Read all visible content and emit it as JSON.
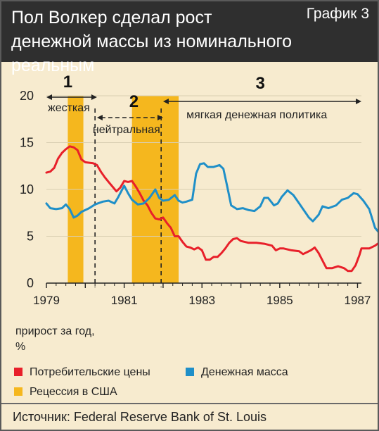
{
  "header": {
    "title": "Пол Волкер сделал рост денежной массы из номинального реальным",
    "chart_label": "График 3"
  },
  "ylabel_lines": [
    "прирост за год,",
    "%"
  ],
  "legend": {
    "items": [
      {
        "label": "Потребительские цены",
        "color": "#e8202a"
      },
      {
        "label": "Денежная масса",
        "color": "#1f8fc8"
      },
      {
        "label": "Рецессия в США",
        "color": "#f5b71e"
      }
    ]
  },
  "source": "Источник: Federal Reserve Bank of St. Louis",
  "phases": [
    {
      "number": "1",
      "label": "жесткая",
      "start": 1979.0,
      "end": 1980.3,
      "style": "solid"
    },
    {
      "number": "2",
      "label": "нейтральная",
      "start": 1980.3,
      "end": 1982.0,
      "style": "dashed"
    },
    {
      "number": "3",
      "label": "мягкая денежная политика",
      "start": 1982.0,
      "end": 1987.1,
      "style": "solid"
    }
  ],
  "chart_data": {
    "type": "line",
    "xlim": [
      1979,
      1987.1
    ],
    "ylim": [
      0,
      20
    ],
    "xticks": [
      1979,
      1981,
      1983,
      1985,
      1987
    ],
    "xtick_labels": [
      "1979",
      "1981",
      "1983",
      "1985",
      "1987"
    ],
    "yticks": [
      0,
      5,
      10,
      15,
      20
    ],
    "ytick_labels": [
      "0",
      "5",
      "10",
      "15",
      "20"
    ],
    "recessions": [
      [
        1979.55,
        1979.95
      ],
      [
        1981.2,
        1982.4
      ]
    ],
    "markers": [
      1980.25,
      1981.95
    ],
    "series": [
      {
        "name": "Потребительские цены",
        "color": "#e8202a",
        "points": [
          [
            1979.0,
            11.8
          ],
          [
            1979.1,
            11.9
          ],
          [
            1979.2,
            12.3
          ],
          [
            1979.3,
            13.3
          ],
          [
            1979.4,
            13.9
          ],
          [
            1979.5,
            14.3
          ],
          [
            1979.6,
            14.6
          ],
          [
            1979.7,
            14.5
          ],
          [
            1979.8,
            14.2
          ],
          [
            1979.9,
            13.2
          ],
          [
            1980.0,
            12.9
          ],
          [
            1980.2,
            12.8
          ],
          [
            1980.3,
            12.6
          ],
          [
            1980.4,
            11.9
          ],
          [
            1980.5,
            11.3
          ],
          [
            1980.6,
            10.8
          ],
          [
            1980.7,
            10.3
          ],
          [
            1980.8,
            9.8
          ],
          [
            1980.9,
            10.2
          ],
          [
            1981.0,
            10.9
          ],
          [
            1981.1,
            10.8
          ],
          [
            1981.2,
            10.9
          ],
          [
            1981.3,
            10.3
          ],
          [
            1981.4,
            9.6
          ],
          [
            1981.5,
            8.8
          ],
          [
            1981.6,
            8.3
          ],
          [
            1981.7,
            7.5
          ],
          [
            1981.8,
            6.9
          ],
          [
            1981.9,
            6.8
          ],
          [
            1982.0,
            7.0
          ],
          [
            1982.1,
            6.4
          ],
          [
            1982.2,
            5.9
          ],
          [
            1982.3,
            5.0
          ],
          [
            1982.4,
            5.0
          ],
          [
            1982.5,
            4.4
          ],
          [
            1982.6,
            3.9
          ],
          [
            1982.7,
            3.8
          ],
          [
            1982.8,
            3.6
          ],
          [
            1982.9,
            3.8
          ],
          [
            1983.0,
            3.5
          ],
          [
            1983.1,
            2.5
          ],
          [
            1983.2,
            2.5
          ],
          [
            1983.3,
            2.8
          ],
          [
            1983.4,
            2.8
          ],
          [
            1983.5,
            3.2
          ],
          [
            1983.6,
            3.7
          ],
          [
            1983.7,
            4.3
          ],
          [
            1983.8,
            4.7
          ],
          [
            1983.9,
            4.8
          ],
          [
            1984.0,
            4.5
          ],
          [
            1984.2,
            4.3
          ],
          [
            1984.4,
            4.3
          ],
          [
            1984.6,
            4.2
          ],
          [
            1984.8,
            4.0
          ],
          [
            1984.9,
            3.5
          ],
          [
            1985.0,
            3.7
          ],
          [
            1985.1,
            3.7
          ],
          [
            1985.3,
            3.5
          ],
          [
            1985.5,
            3.4
          ],
          [
            1985.6,
            3.1
          ],
          [
            1985.8,
            3.5
          ],
          [
            1985.9,
            3.8
          ],
          [
            1986.0,
            3.2
          ],
          [
            1986.1,
            2.4
          ],
          [
            1986.2,
            1.6
          ],
          [
            1986.35,
            1.6
          ],
          [
            1986.5,
            1.8
          ],
          [
            1986.65,
            1.6
          ],
          [
            1986.75,
            1.3
          ],
          [
            1986.85,
            1.3
          ],
          [
            1986.95,
            1.9
          ],
          [
            1987.05,
            3.0
          ],
          [
            1987.1,
            3.7
          ],
          [
            1987.3,
            3.7
          ],
          [
            1987.45,
            4.0
          ],
          [
            1987.55,
            4.3
          ]
        ]
      },
      {
        "name": "Денежная масса",
        "color": "#1f8fc8",
        "points": [
          [
            1979.0,
            8.5
          ],
          [
            1979.1,
            8.0
          ],
          [
            1979.25,
            7.9
          ],
          [
            1979.4,
            8.0
          ],
          [
            1979.5,
            8.4
          ],
          [
            1979.6,
            7.9
          ],
          [
            1979.7,
            7.0
          ],
          [
            1979.8,
            7.2
          ],
          [
            1979.9,
            7.6
          ],
          [
            1980.1,
            8.0
          ],
          [
            1980.25,
            8.4
          ],
          [
            1980.45,
            8.7
          ],
          [
            1980.6,
            8.8
          ],
          [
            1980.75,
            8.5
          ],
          [
            1980.85,
            9.2
          ],
          [
            1981.0,
            10.4
          ],
          [
            1981.1,
            9.6
          ],
          [
            1981.2,
            8.9
          ],
          [
            1981.35,
            8.4
          ],
          [
            1981.5,
            8.5
          ],
          [
            1981.65,
            9.1
          ],
          [
            1981.8,
            10.0
          ],
          [
            1981.9,
            9.1
          ],
          [
            1982.0,
            8.8
          ],
          [
            1982.15,
            8.9
          ],
          [
            1982.3,
            9.4
          ],
          [
            1982.4,
            8.8
          ],
          [
            1982.5,
            8.6
          ],
          [
            1982.6,
            8.7
          ],
          [
            1982.75,
            8.9
          ],
          [
            1982.85,
            11.7
          ],
          [
            1982.95,
            12.7
          ],
          [
            1983.05,
            12.8
          ],
          [
            1983.15,
            12.4
          ],
          [
            1983.3,
            12.4
          ],
          [
            1983.45,
            12.6
          ],
          [
            1983.55,
            12.2
          ],
          [
            1983.65,
            10.3
          ],
          [
            1983.75,
            8.3
          ],
          [
            1983.9,
            7.9
          ],
          [
            1984.05,
            8.0
          ],
          [
            1984.2,
            7.8
          ],
          [
            1984.35,
            7.7
          ],
          [
            1984.5,
            8.2
          ],
          [
            1984.6,
            9.1
          ],
          [
            1984.7,
            9.1
          ],
          [
            1984.85,
            8.3
          ],
          [
            1984.95,
            8.5
          ],
          [
            1985.05,
            9.2
          ],
          [
            1985.2,
            9.9
          ],
          [
            1985.35,
            9.4
          ],
          [
            1985.5,
            8.5
          ],
          [
            1985.6,
            7.9
          ],
          [
            1985.75,
            7.0
          ],
          [
            1985.85,
            6.6
          ],
          [
            1986.0,
            7.3
          ],
          [
            1986.1,
            8.2
          ],
          [
            1986.25,
            8.0
          ],
          [
            1986.45,
            8.3
          ],
          [
            1986.6,
            8.9
          ],
          [
            1986.75,
            9.1
          ],
          [
            1986.9,
            9.6
          ],
          [
            1987.0,
            9.5
          ],
          [
            1987.15,
            8.8
          ],
          [
            1987.3,
            7.9
          ],
          [
            1987.45,
            5.9
          ],
          [
            1987.55,
            5.4
          ]
        ]
      }
    ]
  }
}
